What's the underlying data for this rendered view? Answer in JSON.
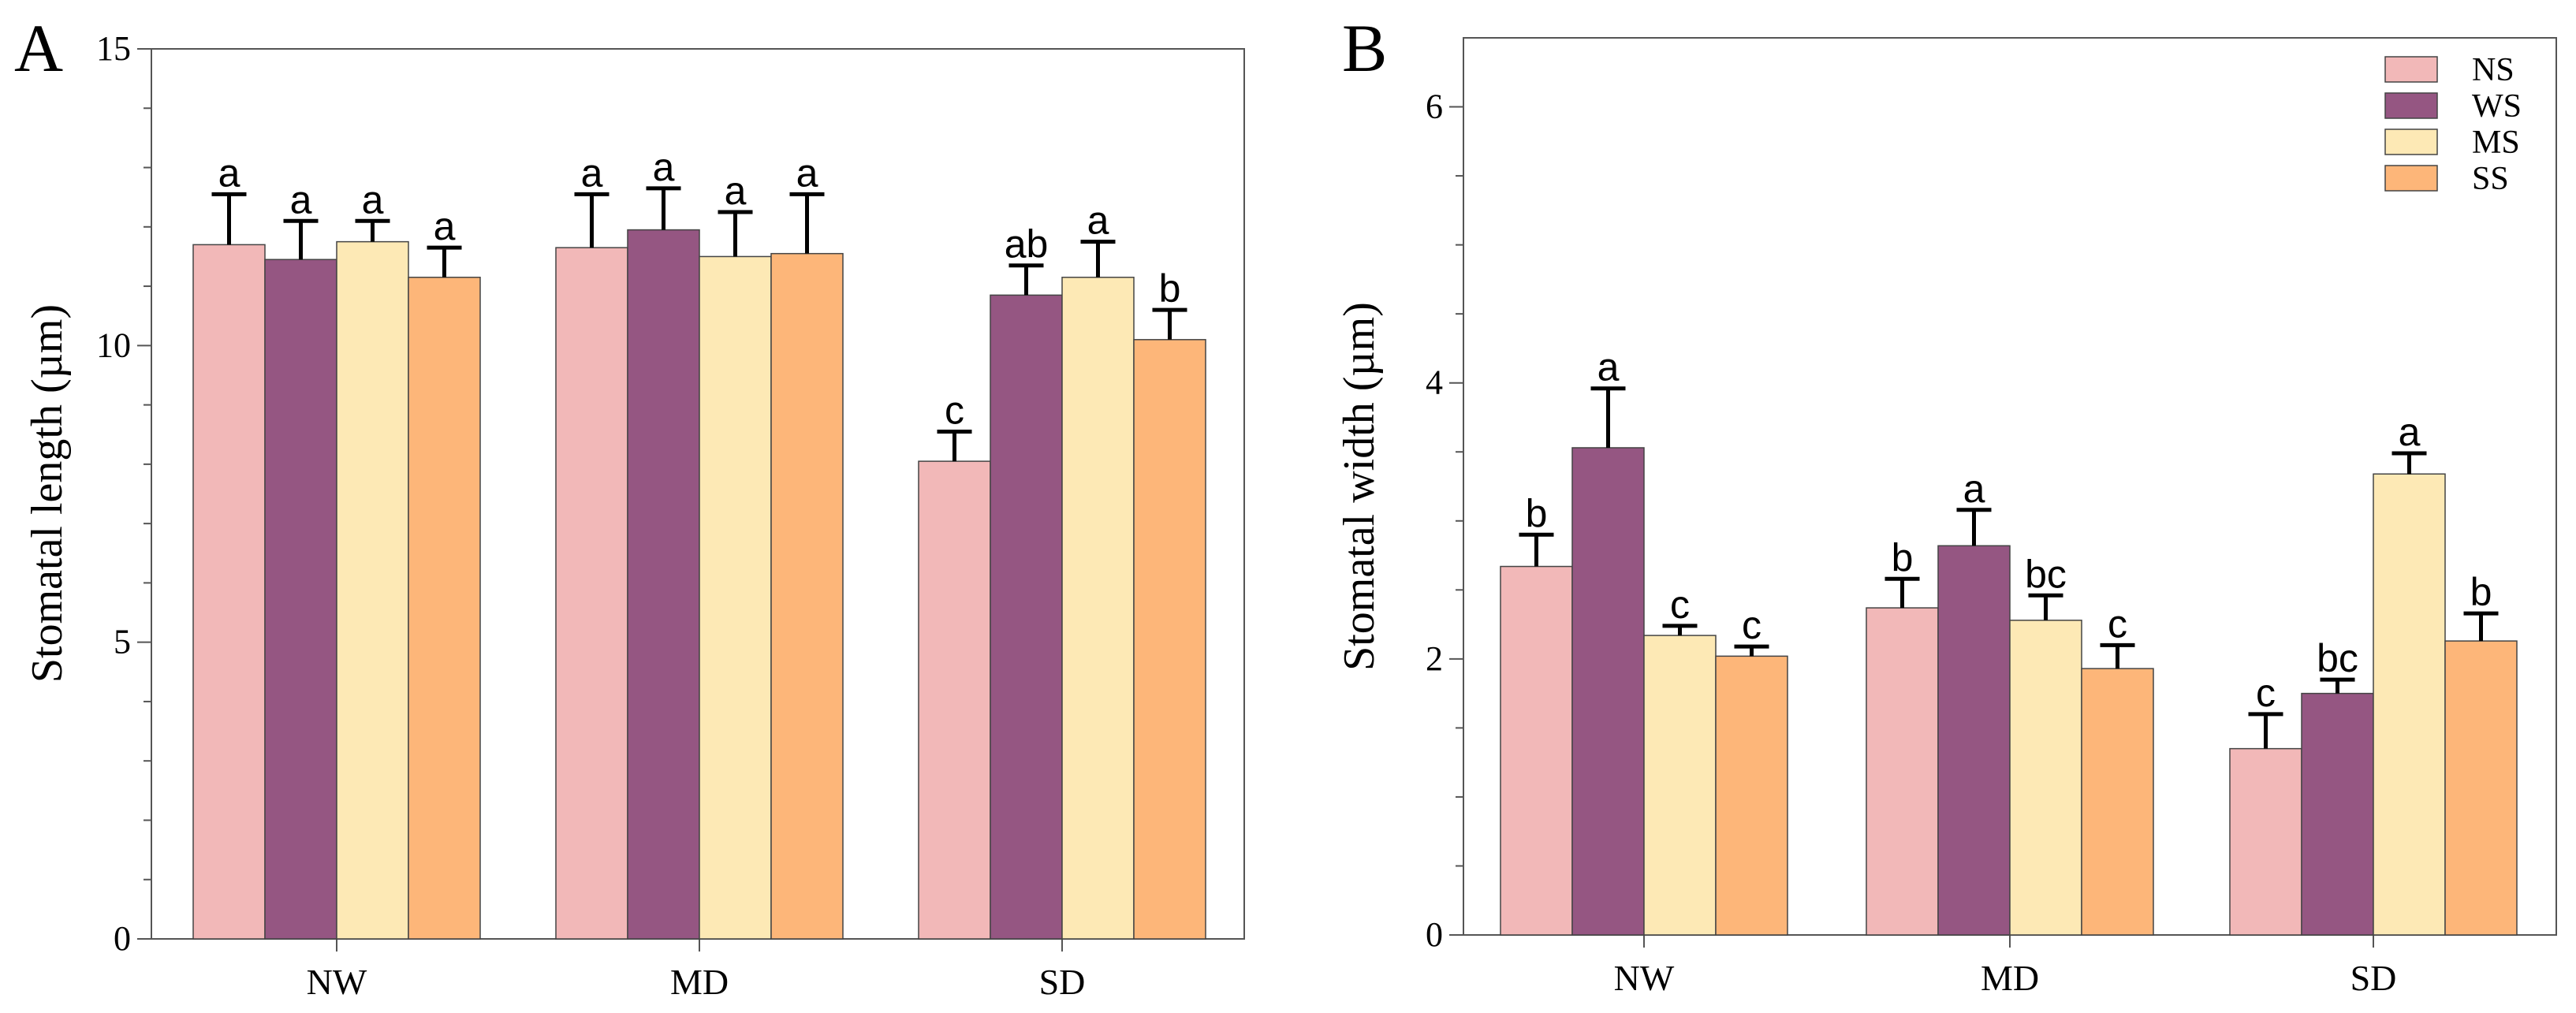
{
  "colors": {
    "NS": "#f2b8b8",
    "WS": "#955682",
    "MS": "#fde9b5",
    "SS": "#fdb679",
    "axis": "#555555",
    "text": "#000000"
  },
  "legend": {
    "position": "top-right",
    "entries": [
      "NS",
      "WS",
      "MS",
      "SS"
    ]
  },
  "chart_data": [
    {
      "type": "bar",
      "panel_label": "A",
      "categories": [
        "NW",
        "MD",
        "SD"
      ],
      "ylabel": "Stomatal length (µm)",
      "xlabel": "",
      "ylim": [
        0,
        15
      ],
      "yticks": [
        0,
        5,
        10,
        15
      ],
      "yticks_minor": [
        1,
        2,
        3,
        4,
        6,
        7,
        8,
        9,
        11,
        12,
        13,
        14
      ],
      "show_legend": false,
      "series": [
        {
          "name": "NS",
          "values": [
            11.7,
            11.65,
            8.05
          ],
          "errors": [
            0.85,
            0.9,
            0.5
          ],
          "letters": [
            "a",
            "a",
            "c"
          ]
        },
        {
          "name": "WS",
          "values": [
            11.45,
            11.95,
            10.85
          ],
          "errors": [
            0.65,
            0.7,
            0.5
          ],
          "letters": [
            "a",
            "a",
            "ab"
          ]
        },
        {
          "name": "MS",
          "values": [
            11.75,
            11.5,
            11.15
          ],
          "errors": [
            0.35,
            0.75,
            0.6
          ],
          "letters": [
            "a",
            "a",
            "a"
          ]
        },
        {
          "name": "SS",
          "values": [
            11.15,
            11.55,
            10.1
          ],
          "errors": [
            0.5,
            1.0,
            0.5
          ],
          "letters": [
            "a",
            "a",
            "b"
          ]
        }
      ]
    },
    {
      "type": "bar",
      "panel_label": "B",
      "categories": [
        "NW",
        "MD",
        "SD"
      ],
      "ylabel": "Stomatal width (µm)",
      "xlabel": "",
      "ylim": [
        0,
        6.5
      ],
      "yticks": [
        0,
        2,
        4,
        6
      ],
      "yticks_minor": [
        0.5,
        1,
        1.5,
        2.5,
        3,
        3.5,
        4.5,
        5,
        5.5
      ],
      "show_legend": true,
      "series": [
        {
          "name": "NS",
          "values": [
            2.67,
            2.37,
            1.35
          ],
          "errors": [
            0.23,
            0.21,
            0.25
          ],
          "letters": [
            "b",
            "b",
            "c"
          ]
        },
        {
          "name": "WS",
          "values": [
            3.53,
            2.82,
            1.75
          ],
          "errors": [
            0.43,
            0.26,
            0.1
          ],
          "letters": [
            "a",
            "a",
            "bc"
          ]
        },
        {
          "name": "MS",
          "values": [
            2.17,
            2.28,
            3.34
          ],
          "errors": [
            0.07,
            0.18,
            0.15
          ],
          "letters": [
            "c",
            "bc",
            "a"
          ]
        },
        {
          "name": "SS",
          "values": [
            2.02,
            1.93,
            2.13
          ],
          "errors": [
            0.07,
            0.17,
            0.2
          ],
          "letters": [
            "c",
            "c",
            "b"
          ]
        }
      ]
    }
  ]
}
